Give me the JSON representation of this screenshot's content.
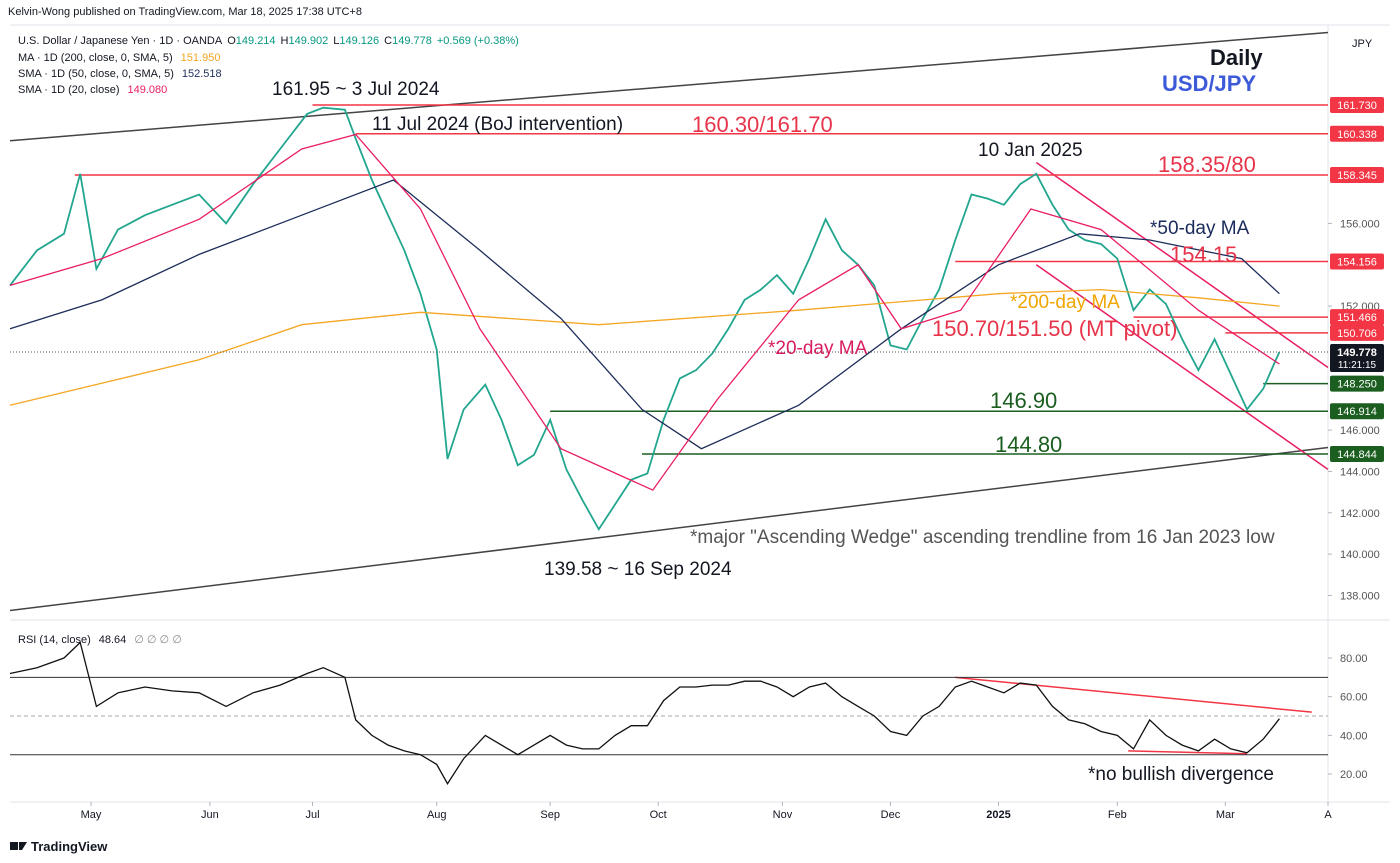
{
  "header": {
    "publisher": "Kelvin-Wong published on TradingView.com, Mar 18, 2025 17:38 UTC+8",
    "footer": "TradingView"
  },
  "chart_data": [
    {
      "type": "line",
      "currency": "JPY",
      "xlim": [
        0,
        244
      ],
      "xticks": [
        {
          "value": 15,
          "label": "May"
        },
        {
          "value": 37,
          "label": "Jun"
        },
        {
          "value": 56,
          "label": "Jul"
        },
        {
          "value": 79,
          "label": "Aug"
        },
        {
          "value": 100,
          "label": "Sep"
        },
        {
          "value": 120,
          "label": "Oct"
        },
        {
          "value": 143,
          "label": "Nov"
        },
        {
          "value": 163,
          "label": "Dec"
        },
        {
          "value": 183,
          "label": "2025"
        },
        {
          "value": 205,
          "label": "Feb"
        },
        {
          "value": 225,
          "label": "Mar"
        },
        {
          "value": 244,
          "label": "A"
        }
      ],
      "ylim": [
        137.2,
        165.6
      ],
      "yticks": [
        {
          "value": 138,
          "label": "138.000"
        },
        {
          "value": 140,
          "label": "140.000"
        },
        {
          "value": 142,
          "label": "142.000"
        },
        {
          "value": 144,
          "label": "144.000"
        },
        {
          "value": 146,
          "label": "146.000"
        },
        {
          "value": 152,
          "label": "152.000"
        },
        {
          "value": 156,
          "label": "156.000"
        }
      ],
      "grid": false,
      "legend": {
        "name": "U.S. Dollar / Japanese Yen · 1D · OANDA",
        "ohlc": [
          {
            "key": "O",
            "value": 149.214
          },
          {
            "key": "H",
            "value": 149.902
          },
          {
            "key": "L",
            "value": 149.126
          },
          {
            "key": "C",
            "value": 149.778
          }
        ],
        "change": "+0.569 (+0.38%)"
      },
      "series": [
        {
          "name": "USD/JPY",
          "color": "#22a68f",
          "x": [
            0,
            5,
            10,
            13,
            16,
            20,
            25,
            30,
            35,
            40,
            45,
            50,
            55,
            58,
            62,
            64,
            67,
            70,
            73,
            76,
            79,
            81,
            84,
            88,
            91,
            94,
            97,
            100,
            103,
            106,
            109,
            112,
            115,
            118,
            121,
            124,
            127,
            130,
            133,
            136,
            139,
            142,
            145,
            148,
            151,
            154,
            157,
            160,
            163,
            166,
            169,
            172,
            175,
            178,
            181,
            184,
            187,
            190,
            193,
            196,
            199,
            202,
            205,
            208,
            211,
            214,
            217,
            220,
            223,
            226,
            229,
            232,
            234,
            235
          ],
          "values": [
            153.0,
            154.7,
            155.5,
            158.4,
            153.8,
            155.7,
            156.4,
            156.9,
            157.4,
            156.0,
            157.9,
            159.6,
            161.3,
            161.6,
            161.5,
            160.1,
            158.1,
            156.4,
            154.7,
            152.6,
            149.9,
            144.6,
            147.0,
            148.2,
            146.5,
            144.3,
            144.8,
            146.5,
            144.1,
            142.6,
            141.2,
            142.4,
            143.6,
            143.9,
            146.5,
            148.5,
            148.9,
            149.7,
            150.9,
            152.3,
            152.8,
            153.5,
            152.6,
            154.3,
            156.2,
            154.7,
            154.0,
            153.0,
            150.1,
            149.9,
            151.4,
            152.8,
            155.2,
            157.4,
            157.2,
            156.9,
            157.9,
            158.4,
            156.9,
            155.7,
            155.2,
            155.0,
            154.3,
            151.8,
            152.8,
            152.1,
            150.4,
            148.9,
            150.4,
            148.7,
            147.0,
            148.0,
            149.2,
            149.778
          ]
        },
        {
          "name": "MA · 1D (200, close, 0, SMA, 5)",
          "last": {
            "value": 151.95,
            "label": "151.950"
          },
          "color": "#f5a623",
          "x": [
            0,
            35,
            54,
            76,
            109,
            146,
            183,
            202,
            220,
            235
          ],
          "values": [
            147.2,
            149.4,
            151.1,
            151.7,
            151.1,
            151.8,
            152.6,
            152.8,
            152.4,
            152.0
          ]
        },
        {
          "name": "SMA · 1D (50, close, 0, SMA, 5)",
          "last": 152.518,
          "color": "#1e2d5a",
          "x": [
            0,
            17,
            35,
            54,
            71,
            87,
            102,
            117,
            128,
            146,
            165,
            183,
            198,
            211,
            228,
            235
          ],
          "values": [
            150.9,
            152.3,
            154.5,
            156.4,
            158.1,
            154.7,
            151.4,
            147.0,
            145.1,
            147.2,
            150.9,
            154.0,
            155.5,
            155.2,
            154.3,
            152.6
          ]
        },
        {
          "name": "SMA · 1D (20, close)",
          "last": {
            "value": 149.08,
            "label": "149.080"
          },
          "color": "#e91e63",
          "x": [
            0,
            17,
            35,
            54,
            64,
            76,
            87,
            102,
            119,
            131,
            146,
            157,
            165,
            176,
            189,
            202,
            220,
            235
          ],
          "values": [
            153.0,
            154.3,
            156.2,
            159.6,
            160.3,
            156.7,
            150.9,
            145.1,
            143.1,
            147.5,
            152.3,
            154.0,
            150.9,
            151.8,
            156.7,
            155.7,
            151.8,
            149.2
          ]
        }
      ],
      "levels": [
        {
          "value": 161.73,
          "label": "161.730",
          "from": 56,
          "color": "#f23645"
        },
        {
          "value": 160.338,
          "from": 64,
          "color": "#f23645"
        },
        {
          "value": 158.345,
          "from": 12,
          "color": "#f23645"
        },
        {
          "value": 154.156,
          "from": 175,
          "color": "#f23645"
        },
        {
          "value": 151.466,
          "from": 208,
          "color": "#f23645"
        },
        {
          "value": 150.706,
          "from": 225,
          "color": "#f23645"
        },
        {
          "value": 148.25,
          "label": "148.250",
          "from": 232,
          "color": "#1b5e20"
        },
        {
          "value": 146.914,
          "from": 100,
          "color": "#1b5e20"
        },
        {
          "value": 144.844,
          "from": 117,
          "color": "#1b5e20"
        }
      ],
      "trendlines": [
        {
          "color": "#444444",
          "start": [
            0,
            160.0
          ],
          "end": [
            244,
            165.24
          ]
        },
        {
          "color": "#444444",
          "start": [
            0,
            137.27
          ],
          "end": [
            244,
            145.16
          ]
        },
        {
          "color": "#e91e63",
          "start": [
            190,
            158.95
          ],
          "end": [
            244,
            149.03
          ]
        },
        {
          "color": "#e91e63",
          "start": [
            190,
            154.0
          ],
          "end": [
            244,
            144.1
          ]
        }
      ],
      "last_price": {
        "value": 149.778,
        "countdown": "11:21:15"
      },
      "annotations": [
        "Daily",
        "USD/JPY",
        "161.95 ~ 3 Jul 2024",
        "11 Jul 2024 (BoJ intervention)",
        "160.30/161.70",
        "10 Jan 2025",
        "158.35/80",
        "*50-day MA",
        "154.15",
        "*200-day MA",
        "150.70/151.50 (MT pivot)",
        "*20-day MA",
        "146.90",
        "144.80",
        "*major \"Ascending Wedge\" ascending trendline from 16 Jan 2023 low",
        "139.58 ~ 16 Sep 2024"
      ]
    },
    {
      "type": "line",
      "ylim": [
        6.6,
        95.5
      ],
      "yticks": [
        {
          "value": 20,
          "label": "20.00"
        },
        {
          "value": 40,
          "label": "40.00"
        },
        {
          "value": 60,
          "label": "60.00"
        },
        {
          "value": 80,
          "label": "80.00"
        }
      ],
      "bands": [
        70,
        30
      ],
      "midline": 50,
      "series": [
        {
          "name": "RSI (14, close)",
          "last": 48.64,
          "extra": "∅ ∅ ∅ ∅",
          "color": "#111111",
          "x": [
            0,
            5,
            10,
            13,
            16,
            20,
            25,
            30,
            35,
            40,
            45,
            50,
            55,
            58,
            62,
            64,
            67,
            70,
            73,
            76,
            79,
            81,
            84,
            88,
            91,
            94,
            97,
            100,
            103,
            106,
            109,
            112,
            115,
            118,
            121,
            124,
            127,
            130,
            133,
            136,
            139,
            142,
            145,
            148,
            151,
            154,
            157,
            160,
            163,
            166,
            169,
            172,
            175,
            178,
            181,
            184,
            187,
            190,
            193,
            196,
            199,
            202,
            205,
            208,
            211,
            214,
            217,
            220,
            223,
            226,
            229,
            232,
            234,
            235
          ],
          "values": [
            72,
            75,
            80,
            88,
            55,
            62,
            65,
            63,
            62,
            55,
            62,
            66,
            72,
            75,
            70,
            48,
            40,
            35,
            32,
            30,
            25,
            15,
            28,
            40,
            35,
            30,
            35,
            40,
            35,
            33,
            33,
            40,
            45,
            45,
            58,
            65,
            65,
            66,
            66,
            68,
            68,
            65,
            60,
            65,
            67,
            60,
            55,
            50,
            42,
            40,
            50,
            55,
            65,
            68,
            65,
            62,
            67,
            66,
            55,
            48,
            46,
            42,
            40,
            33,
            48,
            40,
            35,
            32,
            38,
            33,
            31,
            38,
            45,
            48.64
          ]
        }
      ],
      "trendlines": [
        {
          "color": "#f23645",
          "start": [
            175,
            70
          ],
          "end": [
            241,
            52
          ]
        },
        {
          "color": "#f23645",
          "start": [
            207,
            32
          ],
          "end": [
            229,
            30.5
          ]
        }
      ],
      "annotations": [
        "*no bullish divergence"
      ]
    }
  ]
}
